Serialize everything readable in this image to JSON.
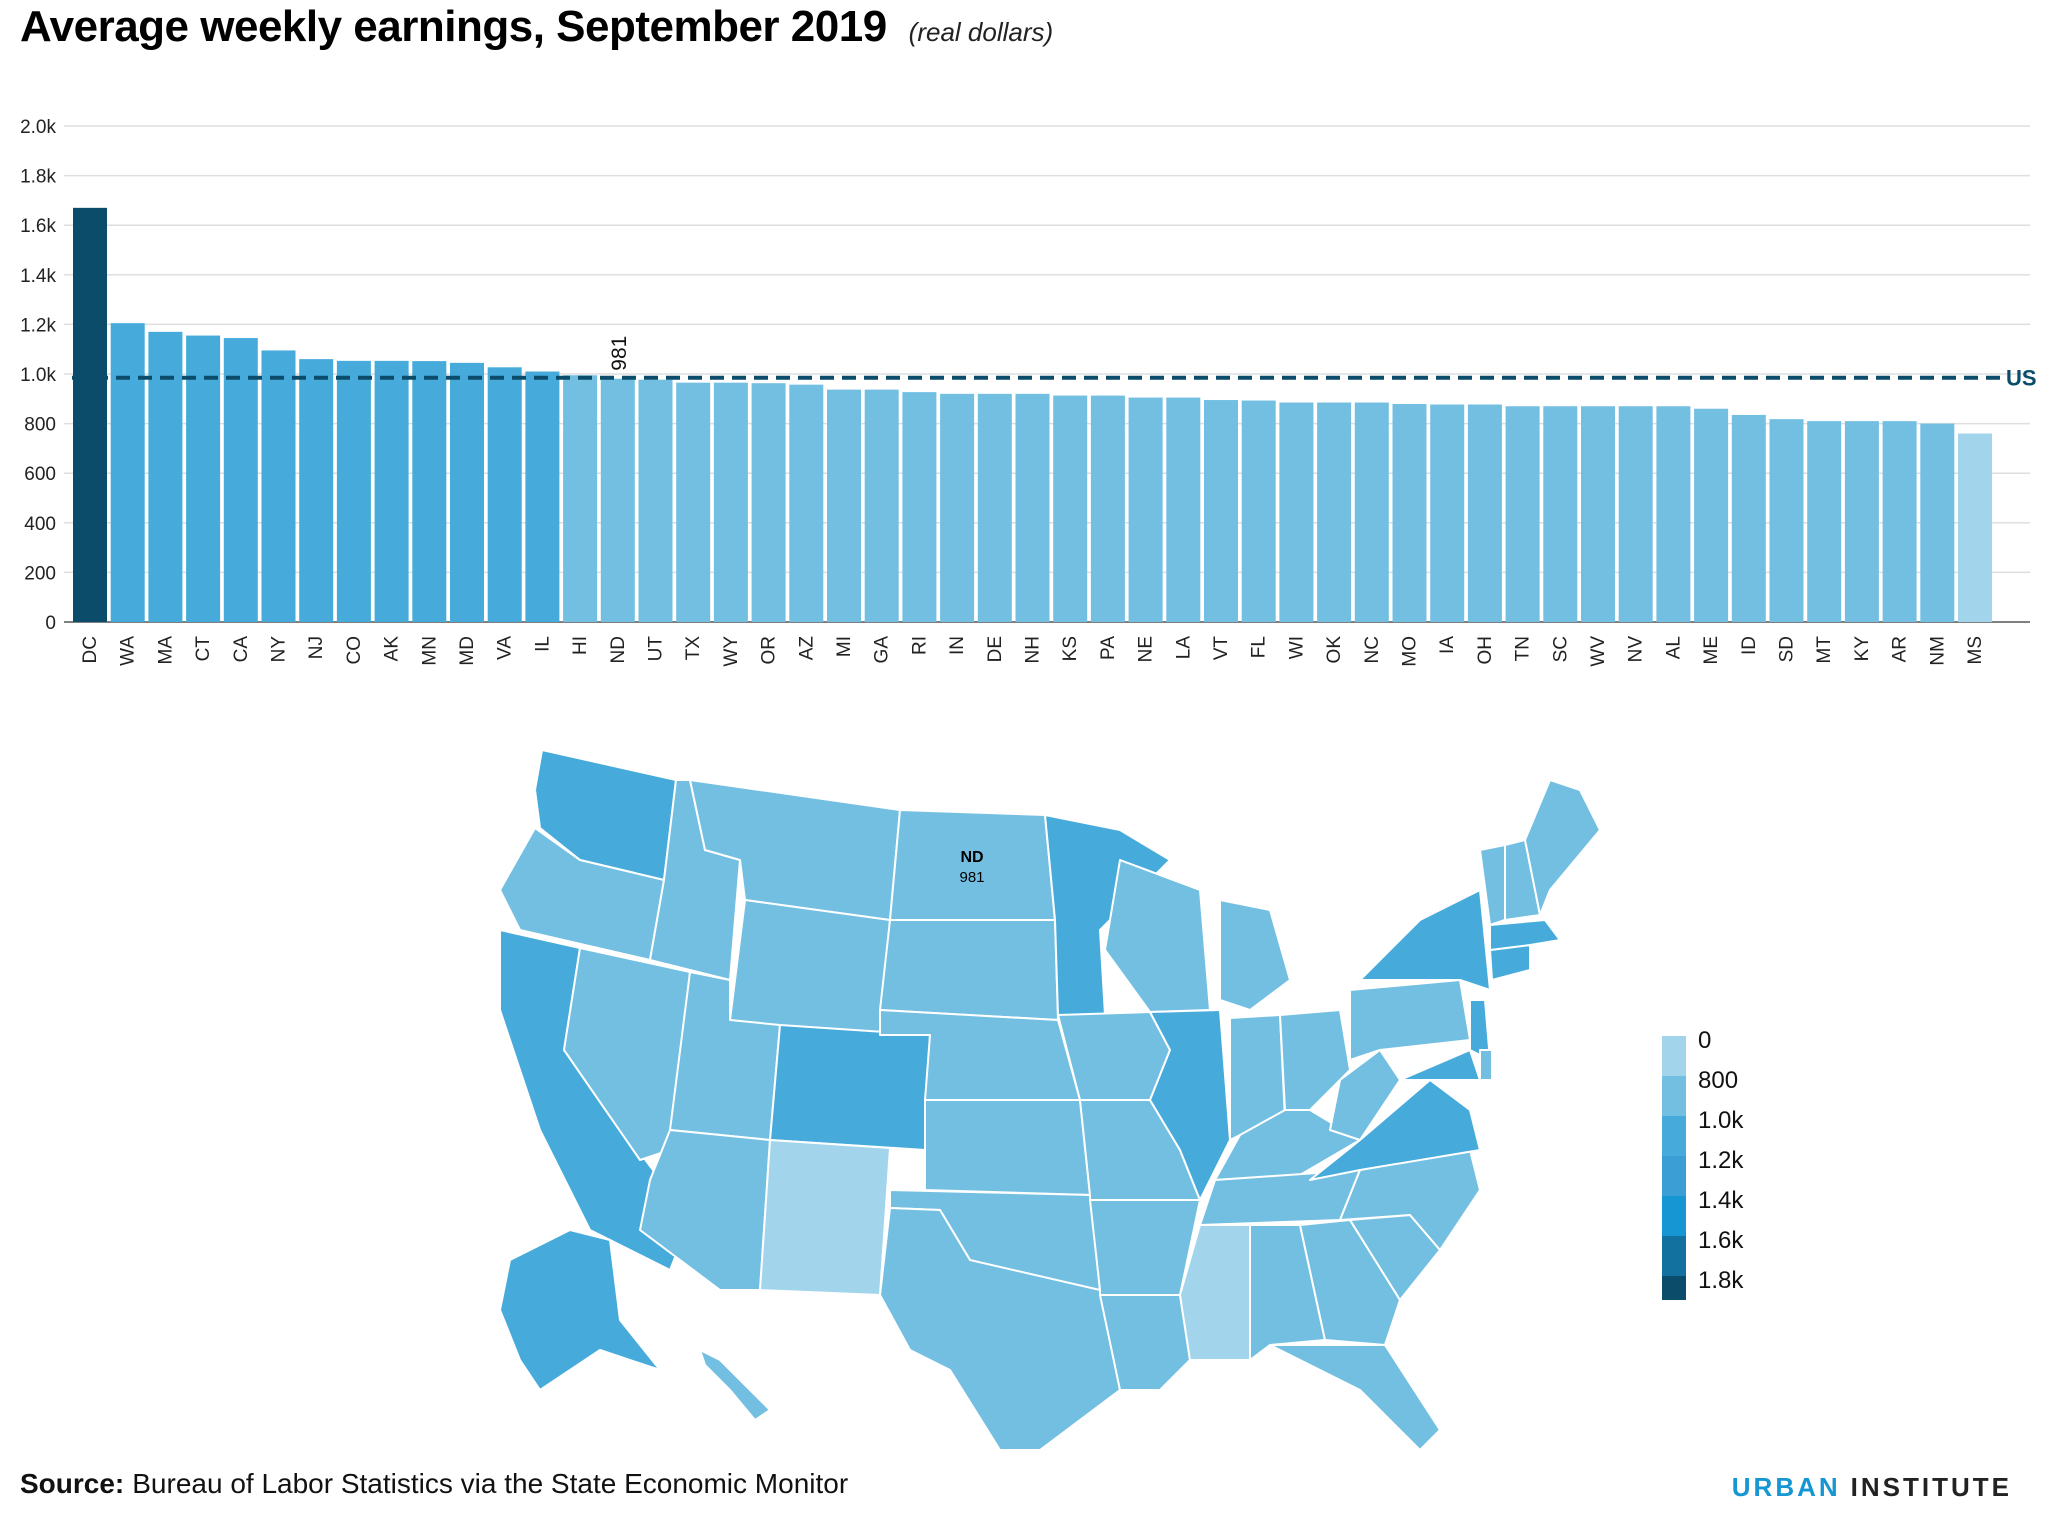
{
  "title": "Average weekly earnings, September 2019",
  "subtitle": "(real dollars)",
  "colors": {
    "dark": "#0a4c6a",
    "mid_dark": "#46abdb",
    "mid": "#73bfe2",
    "light": "#a2d4ec",
    "grid": "#dedede",
    "us_line": "#0a4c6a",
    "urban_blue": "#1696d2"
  },
  "chart_data": {
    "type": "bar",
    "categories": [
      "DC",
      "WA",
      "MA",
      "CT",
      "CA",
      "NY",
      "NJ",
      "CO",
      "AK",
      "MN",
      "MD",
      "VA",
      "IL",
      "HI",
      "ND",
      "UT",
      "TX",
      "WY",
      "OR",
      "AZ",
      "MI",
      "GA",
      "RI",
      "IN",
      "DE",
      "NH",
      "KS",
      "PA",
      "NE",
      "LA",
      "VT",
      "FL",
      "WI",
      "OK",
      "NC",
      "MO",
      "IA",
      "OH",
      "TN",
      "SC",
      "WV",
      "NV",
      "AL",
      "ME",
      "ID",
      "SD",
      "MT",
      "KY",
      "AR",
      "NM",
      "MS"
    ],
    "values": [
      1670,
      1205,
      1170,
      1155,
      1145,
      1095,
      1060,
      1053,
      1053,
      1052,
      1045,
      1027,
      1010,
      995,
      981,
      977,
      965,
      965,
      963,
      957,
      937,
      937,
      927,
      920,
      920,
      920,
      913,
      913,
      905,
      905,
      895,
      893,
      885,
      885,
      885,
      879,
      877,
      877,
      870,
      870,
      870,
      870,
      870,
      860,
      835,
      818,
      810,
      810,
      810,
      800,
      760
    ],
    "ylim": [
      0,
      2000
    ],
    "yticks": [
      0,
      200,
      400,
      600,
      800,
      1000,
      1200,
      1400,
      1600,
      1800,
      2000
    ],
    "ytick_labels": [
      "0",
      "200",
      "400",
      "600",
      "800",
      "1.0k",
      "1.2k",
      "1.4k",
      "1.6k",
      "1.8k",
      "2.0k"
    ],
    "reference_line": {
      "label": "US",
      "value": 985
    },
    "annotation": {
      "category": "ND",
      "label": "981"
    },
    "grid": true
  },
  "map": {
    "highlight_state": "ND",
    "highlight_value": "981"
  },
  "legend": {
    "labels": [
      "0",
      "800",
      "1.0k",
      "1.2k",
      "1.4k",
      "1.6k",
      "1.8k"
    ],
    "colors": [
      "#a2d4ec",
      "#73bfe2",
      "#46abdb",
      "#3b9fd6",
      "#1696d2",
      "#12719e",
      "#0a4c6a"
    ]
  },
  "footer": {
    "source_label": "Source:",
    "source_text": "Bureau of Labor Statistics via the State Economic Monitor",
    "logo_word1": "URBAN",
    "logo_word2": "INSTITUTE"
  }
}
